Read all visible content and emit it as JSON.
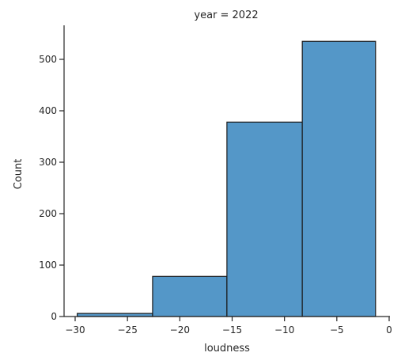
{
  "chart_data": {
    "type": "bar",
    "subtype": "histogram",
    "title": "year = 2022",
    "xlabel": "loudness",
    "ylabel": "Count",
    "bins": [
      {
        "start": -29.8,
        "end": -22.6,
        "count": 6
      },
      {
        "start": -22.6,
        "end": -15.5,
        "count": 78
      },
      {
        "start": -15.5,
        "end": -8.3,
        "count": 378
      },
      {
        "start": -8.3,
        "end": -1.3,
        "count": 535
      }
    ],
    "xlim": [
      -31,
      0
    ],
    "ylim": [
      0,
      565
    ],
    "xticks": [
      {
        "value": -30,
        "label": "−30"
      },
      {
        "value": -25,
        "label": "−25"
      },
      {
        "value": -20,
        "label": "−20"
      },
      {
        "value": -15,
        "label": "−15"
      },
      {
        "value": -10,
        "label": "−10"
      },
      {
        "value": -5,
        "label": "−5"
      },
      {
        "value": 0,
        "label": "0"
      }
    ],
    "yticks": [
      {
        "value": 0,
        "label": "0"
      },
      {
        "value": 100,
        "label": "100"
      },
      {
        "value": 200,
        "label": "200"
      },
      {
        "value": 300,
        "label": "300"
      },
      {
        "value": 400,
        "label": "400"
      },
      {
        "value": 500,
        "label": "500"
      }
    ],
    "bar_color": "#5497c8",
    "edge_color": "#1a1a1a",
    "grid": false,
    "spines": [
      "left",
      "bottom"
    ]
  }
}
